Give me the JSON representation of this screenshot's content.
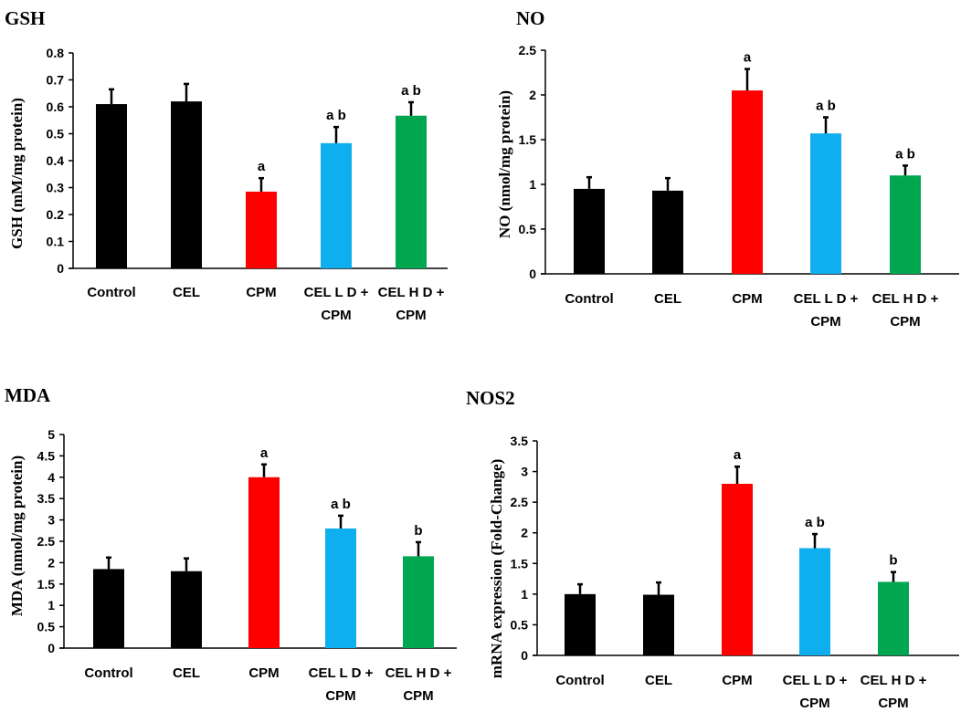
{
  "colors": {
    "Control": "#000000",
    "CEL": "#000000",
    "CPM": "#ff0000",
    "CEL L D + CPM": "#0eaeef",
    "CEL H D + CPM": "#00a650"
  },
  "chart_data": [
    {
      "type": "bar",
      "title": "GSH",
      "xlabel": "",
      "ylabel": "GSH (mM/mg protein)",
      "categories": [
        [
          "Control"
        ],
        [
          "CEL"
        ],
        [
          "CPM"
        ],
        [
          "CEL L D +",
          "CPM"
        ],
        [
          "CEL H D +",
          "CPM"
        ]
      ],
      "values": [
        0.61,
        0.62,
        0.285,
        0.465,
        0.567
      ],
      "errors": [
        0.055,
        0.065,
        0.05,
        0.06,
        0.05
      ],
      "significance": [
        "",
        "",
        "a",
        "a b",
        "a b"
      ],
      "ylim": [
        0,
        0.8
      ],
      "ystep": 0.1,
      "yticks": [
        "0",
        "0.1",
        "0.2",
        "0.3",
        "0.4",
        "0.5",
        "0.6",
        "0.7",
        "0.8"
      ],
      "grid": false
    },
    {
      "type": "bar",
      "title": "NO",
      "xlabel": "",
      "ylabel": "NO (nmol/mg protein)",
      "categories": [
        [
          "Control"
        ],
        [
          "CEL"
        ],
        [
          "CPM"
        ],
        [
          "CEL L D +",
          "CPM"
        ],
        [
          "CEL H D +",
          "CPM"
        ]
      ],
      "values": [
        0.95,
        0.93,
        2.05,
        1.57,
        1.1
      ],
      "errors": [
        0.13,
        0.14,
        0.24,
        0.18,
        0.11
      ],
      "significance": [
        "",
        "",
        "a",
        "a b",
        "a b"
      ],
      "ylim": [
        0,
        2.5
      ],
      "ystep": 0.5,
      "yticks": [
        "0",
        "0.5",
        "1",
        "1.5",
        "2",
        "2.5"
      ],
      "grid": false
    },
    {
      "type": "bar",
      "title": "MDA",
      "xlabel": "",
      "ylabel": "MDA (nmol/mg protein)",
      "categories": [
        [
          "Control"
        ],
        [
          "CEL"
        ],
        [
          "CPM"
        ],
        [
          "CEL L D +",
          "CPM"
        ],
        [
          "CEL H D +",
          "CPM"
        ]
      ],
      "values": [
        1.85,
        1.8,
        4.0,
        2.8,
        2.15
      ],
      "errors": [
        0.27,
        0.3,
        0.3,
        0.3,
        0.33
      ],
      "significance": [
        "",
        "",
        "a",
        "a b",
        "b"
      ],
      "ylim": [
        0,
        5
      ],
      "ystep": 0.5,
      "yticks": [
        "0",
        "0.5",
        "1",
        "1.5",
        "2",
        "2.5",
        "3",
        "3.5",
        "4",
        "4.5",
        "5"
      ],
      "grid": false
    },
    {
      "type": "bar",
      "title": "NOS2",
      "xlabel": "",
      "ylabel": "mRNA expression (Fold-Change)",
      "categories": [
        [
          "Control"
        ],
        [
          "CEL"
        ],
        [
          "CPM"
        ],
        [
          "CEL L D +",
          "CPM"
        ],
        [
          "CEL H D +",
          "CPM"
        ]
      ],
      "values": [
        1.0,
        0.99,
        2.8,
        1.75,
        1.2
      ],
      "errors": [
        0.16,
        0.2,
        0.28,
        0.23,
        0.16
      ],
      "significance": [
        "",
        "",
        "a",
        "a b",
        "b"
      ],
      "ylim": [
        0,
        3.5
      ],
      "ystep": 0.5,
      "yticks": [
        "0",
        "0.5",
        "1",
        "1.5",
        "2",
        "2.5",
        "3",
        "3.5"
      ],
      "grid": false
    }
  ]
}
